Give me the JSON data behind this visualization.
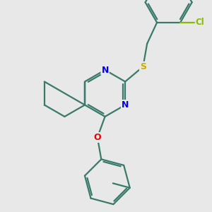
{
  "background_color": "#e8e8e8",
  "bond_color": "#3a7a6a",
  "bond_width": 1.6,
  "atom_colors": {
    "N": "#0000ee",
    "S": "#ccaa00",
    "O": "#ee0000",
    "Cl": "#88bb00",
    "C": "#3a7a6a"
  },
  "figsize": [
    3.0,
    3.0
  ],
  "dpi": 100,
  "xlim": [
    0,
    10
  ],
  "ylim": [
    0,
    10
  ]
}
